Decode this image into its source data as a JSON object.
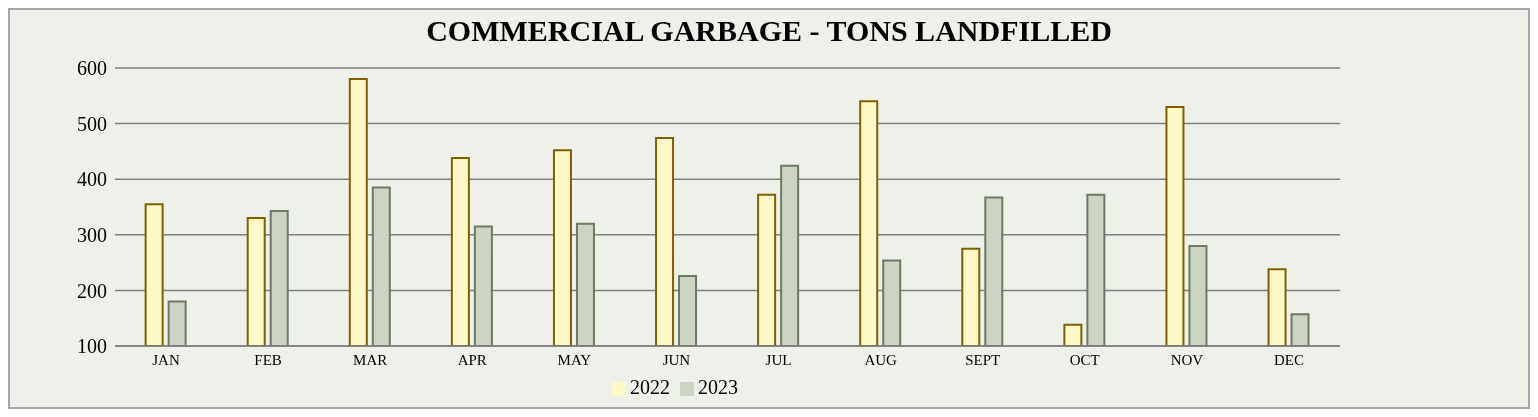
{
  "chart_data": {
    "type": "bar",
    "title": "COMMERCIAL GARBAGE - TONS LANDFILLED",
    "categories": [
      "JAN",
      "FEB",
      "MAR",
      "APR",
      "MAY",
      "JUN",
      "JUL",
      "AUG",
      "SEPT",
      "OCT",
      "NOV",
      "DEC"
    ],
    "series": [
      {
        "name": "2022",
        "color": "#fff9c9",
        "values": [
          355,
          330,
          580,
          438,
          452,
          474,
          372,
          540,
          275,
          138,
          530,
          238
        ]
      },
      {
        "name": "2023",
        "color": "#ccd5c3",
        "values": [
          180,
          343,
          385,
          315,
          320,
          226,
          424,
          254,
          367,
          372,
          280,
          157
        ]
      }
    ],
    "ylim": [
      100,
      600
    ],
    "yticks": [
      100,
      200,
      300,
      400,
      500,
      600
    ],
    "grid": "y",
    "legend": "bottom"
  }
}
